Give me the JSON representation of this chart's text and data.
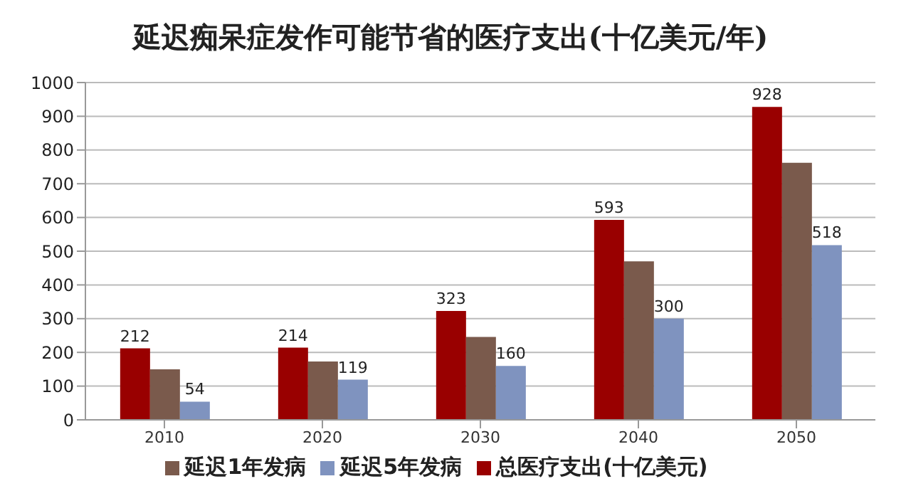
{
  "chart_data": {
    "type": "bar",
    "title": "延迟痴呆症发作可能节省的医疗支出(十亿美元/年)",
    "categories": [
      "2010",
      "2020",
      "2030",
      "2040",
      "2050"
    ],
    "series": [
      {
        "name": "总医疗支出(十亿美元)",
        "color": "#990000",
        "values": [
          212,
          214,
          323,
          593,
          928
        ],
        "value_labels": [
          "212",
          "214",
          "323",
          "593",
          "928"
        ]
      },
      {
        "name": "延迟1年发病",
        "color": "#7a5a4c",
        "values": [
          150,
          173,
          246,
          470,
          762
        ],
        "value_labels": [
          null,
          null,
          null,
          null,
          null
        ]
      },
      {
        "name": "延迟5年发病",
        "color": "#7f93bf",
        "values": [
          54,
          119,
          160,
          300,
          518
        ],
        "value_labels": [
          "54",
          "119",
          "160",
          "300",
          "518"
        ]
      }
    ],
    "ylim": [
      0,
      1000
    ],
    "yticks": [
      0,
      100,
      200,
      300,
      400,
      500,
      600,
      700,
      800,
      900,
      1000
    ],
    "grid": "y",
    "legend": "bottom"
  }
}
